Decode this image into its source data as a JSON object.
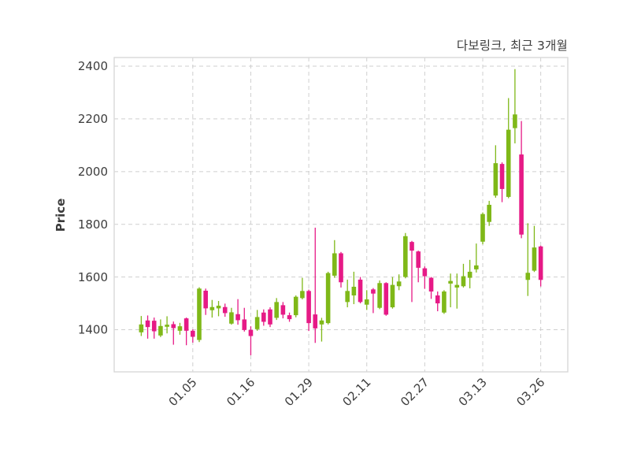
{
  "title": "다보링크, 최근 3개월",
  "chart_data": {
    "type": "candlestick",
    "title": "다보링크, 최근 3개월",
    "ylabel": "Price",
    "xlabel": "",
    "grid": true,
    "y_ticks": [
      1400,
      1600,
      1800,
      2000,
      2200,
      2400
    ],
    "ylim": [
      1240,
      2433
    ],
    "xlim": [
      -4.2,
      66.2
    ],
    "x_tick_labels": [
      "01.05",
      "01.16",
      "01.29",
      "02.11",
      "02.27",
      "03.13",
      "03.26"
    ],
    "x_tick_indices": [
      8,
      17,
      26,
      35,
      44,
      53,
      62
    ],
    "colors": {
      "up": "#7fb818",
      "down": "#e61a86",
      "grid": "#cfcfcf",
      "frame": "#d9d9d9",
      "text": "#3d3d3d"
    },
    "candle_format": [
      "open",
      "high",
      "low",
      "close"
    ],
    "candles": [
      [
        1390,
        1452,
        1376,
        1420
      ],
      [
        1435,
        1454,
        1366,
        1410
      ],
      [
        1434,
        1446,
        1366,
        1394
      ],
      [
        1378,
        1439,
        1372,
        1414
      ],
      [
        1411,
        1451,
        1386,
        1419
      ],
      [
        1421,
        1431,
        1343,
        1406
      ],
      [
        1396,
        1426,
        1381,
        1413
      ],
      [
        1443,
        1446,
        1341,
        1396
      ],
      [
        1396,
        1401,
        1351,
        1373
      ],
      [
        1361,
        1561,
        1353,
        1556
      ],
      [
        1548,
        1556,
        1456,
        1481
      ],
      [
        1474,
        1513,
        1446,
        1486
      ],
      [
        1481,
        1509,
        1451,
        1491
      ],
      [
        1486,
        1499,
        1449,
        1463
      ],
      [
        1423,
        1483,
        1419,
        1466
      ],
      [
        1459,
        1516,
        1419,
        1436
      ],
      [
        1439,
        1483,
        1393,
        1399
      ],
      [
        1399,
        1413,
        1303,
        1376
      ],
      [
        1402,
        1475,
        1396,
        1448
      ],
      [
        1465,
        1477,
        1415,
        1430
      ],
      [
        1477,
        1485,
        1410,
        1420
      ],
      [
        1445,
        1520,
        1437,
        1505
      ],
      [
        1493,
        1505,
        1443,
        1457
      ],
      [
        1455,
        1465,
        1430,
        1440
      ],
      [
        1455,
        1530,
        1447,
        1525
      ],
      [
        1520,
        1597,
        1515,
        1547
      ],
      [
        1547,
        1552,
        1395,
        1425
      ],
      [
        1458,
        1787,
        1350,
        1405
      ],
      [
        1420,
        1445,
        1355,
        1435
      ],
      [
        1425,
        1620,
        1420,
        1615
      ],
      [
        1605,
        1740,
        1597,
        1690
      ],
      [
        1690,
        1695,
        1560,
        1580
      ],
      [
        1505,
        1590,
        1485,
        1547
      ],
      [
        1530,
        1620,
        1497,
        1563
      ],
      [
        1590,
        1600,
        1500,
        1505
      ],
      [
        1495,
        1550,
        1475,
        1515
      ],
      [
        1553,
        1558,
        1463,
        1537
      ],
      [
        1483,
        1587,
        1478,
        1577
      ],
      [
        1577,
        1580,
        1453,
        1457
      ],
      [
        1485,
        1600,
        1480,
        1570
      ],
      [
        1565,
        1610,
        1550,
        1583
      ],
      [
        1600,
        1767,
        1595,
        1755
      ],
      [
        1733,
        1737,
        1505,
        1700
      ],
      [
        1697,
        1700,
        1580,
        1635
      ],
      [
        1633,
        1640,
        1555,
        1603
      ],
      [
        1597,
        1600,
        1517,
        1545
      ],
      [
        1530,
        1545,
        1470,
        1500
      ],
      [
        1465,
        1550,
        1460,
        1545
      ],
      [
        1575,
        1613,
        1485,
        1585
      ],
      [
        1560,
        1613,
        1480,
        1570
      ],
      [
        1565,
        1650,
        1560,
        1603
      ],
      [
        1597,
        1665,
        1557,
        1620
      ],
      [
        1629,
        1727,
        1617,
        1644
      ],
      [
        1734,
        1845,
        1724,
        1839
      ],
      [
        1809,
        1889,
        1794,
        1874
      ],
      [
        1909,
        2100,
        1901,
        2032
      ],
      [
        2029,
        2035,
        1884,
        1934
      ],
      [
        1904,
        2279,
        1899,
        2159
      ],
      [
        2165,
        2389,
        2107,
        2217
      ],
      [
        2065,
        2192,
        1747,
        1761
      ],
      [
        1589,
        1804,
        1528,
        1616
      ],
      [
        1624,
        1794,
        1619,
        1712
      ],
      [
        1716,
        1719,
        1564,
        1589
      ]
    ]
  }
}
